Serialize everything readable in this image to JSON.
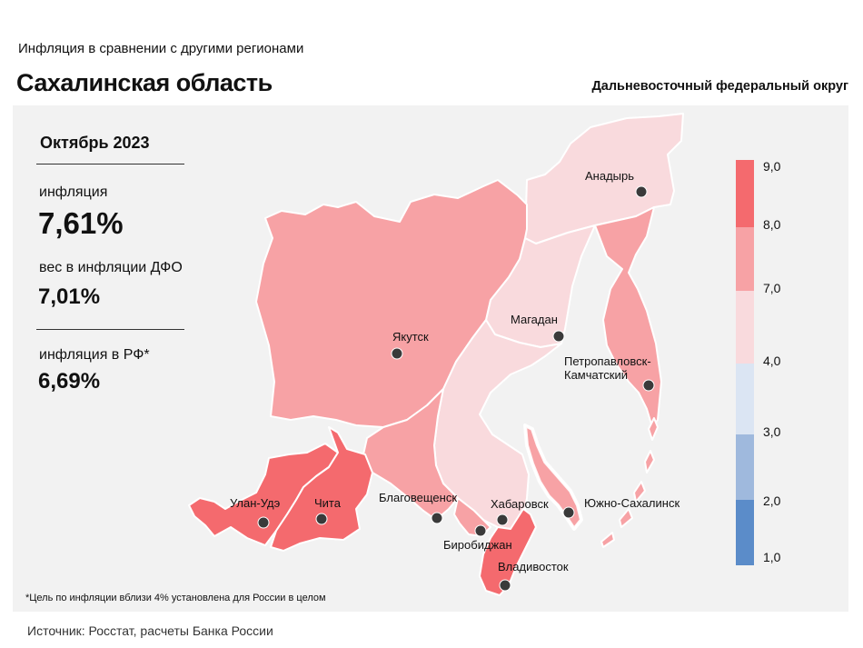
{
  "header": {
    "subtitle": "Инфляция в сравнении с другими регионами",
    "title": "Сахалинская область",
    "district": "Дальневосточный федеральный округ"
  },
  "summary": {
    "period": "Октябрь 2023",
    "inflation_label": "инфляция",
    "inflation_value": "7,61%",
    "weight_label": "вес в инфляции ДФО",
    "weight_value": "7,01%",
    "rf_label": "инфляция в РФ*",
    "rf_value": "6,69%"
  },
  "footnote": "*Цель по инфляции вблизи 4% установлена для России в целом",
  "source": "Источник: Росстат, расчеты Банка России",
  "cities": {
    "anadyr": "Анадырь",
    "magadan": "Магадан",
    "yakutsk": "Якутск",
    "petropavlovsk_1": "Петропавловск-",
    "petropavlovsk_2": "Камчатский",
    "ulan_ude": "Улан-Удэ",
    "chita": "Чита",
    "blagoveshchensk": "Благовещенск",
    "khabarovsk": "Хабаровск",
    "yuzhno": "Южно-Сахалинск",
    "birobidzhan": "Биробиджан",
    "vladivostok": "Владивосток"
  },
  "legend": {
    "ticks": [
      "9,0",
      "8,0",
      "7,0",
      "4,0",
      "3,0",
      "2,0",
      "1,0"
    ],
    "colors": [
      "#f46a6e",
      "#f7a2a5",
      "#f9dadd",
      "#dbe5f3",
      "#9fb9dd",
      "#5b8cc9"
    ]
  },
  "region_colors": {
    "high": "#f46a6e",
    "mid": "#f7a2a5",
    "low": "#f9dadd"
  }
}
